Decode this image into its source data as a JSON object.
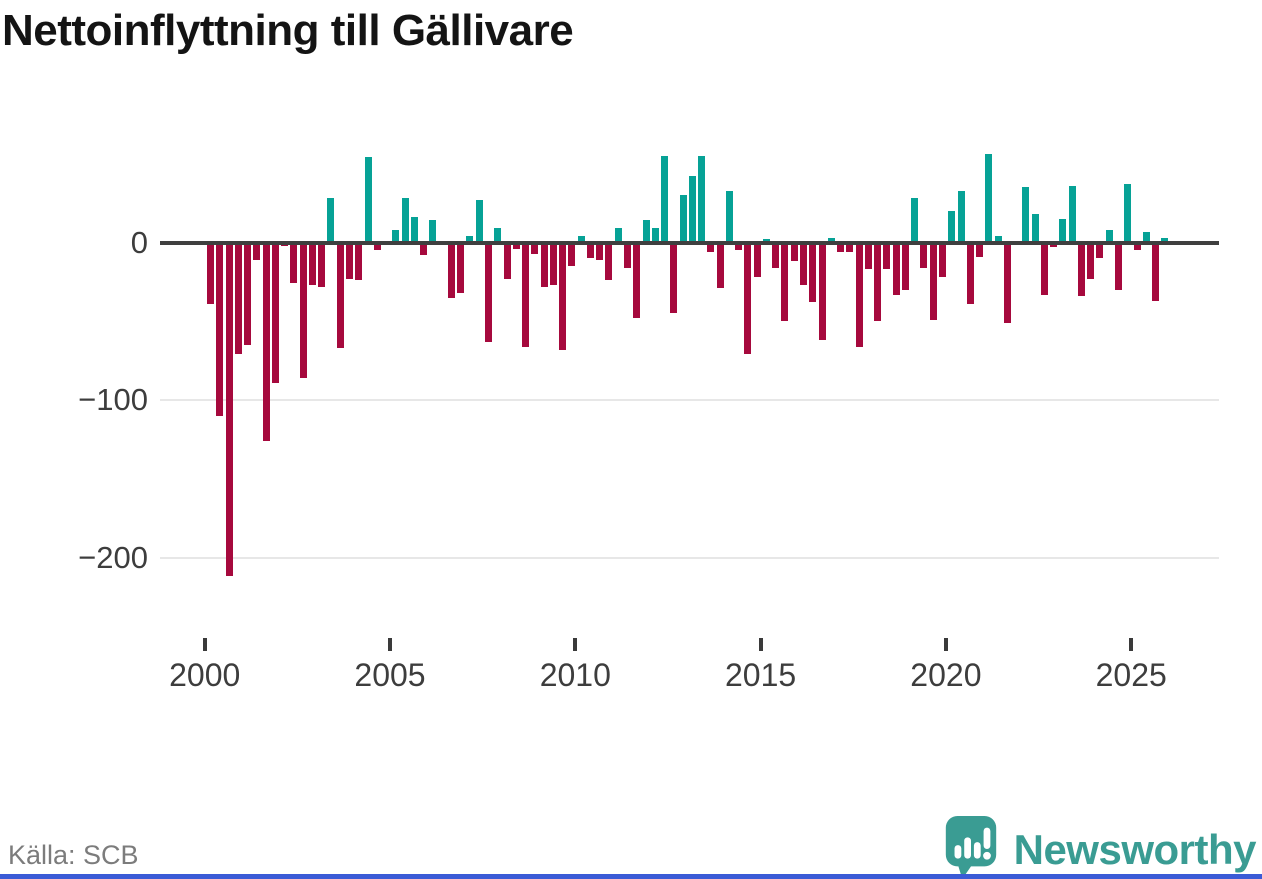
{
  "title": "Nettoinflyttning till Gällivare",
  "source_label": "Källa: SCB",
  "logo": {
    "text": "Newsworthy",
    "icon": "speech-bubble-bar-chart-icon",
    "color": "#3a9c93"
  },
  "colors": {
    "positive_bar": "#06a296",
    "negative_bar": "#a6093d",
    "zero_line": "#3f3f3f",
    "gridline": "#e7e7e7",
    "axis_text": "#3d3d3d",
    "title_text": "#141414",
    "source_text": "#7c7c7c",
    "bottom_strip": "#3b5bd6"
  },
  "chart_data": {
    "type": "bar",
    "title": "Nettoinflyttning till Gällivare",
    "xlabel": "",
    "ylabel": "",
    "x_unit": "quarter",
    "start_year": 2000,
    "start_quarter": 1,
    "end_year": 2025,
    "end_quarter": 4,
    "values": [
      -39,
      -110,
      -212,
      -71,
      -65,
      -11,
      -126,
      -89,
      -2,
      -26,
      -86,
      -27,
      -28,
      28,
      -67,
      -23,
      -24,
      54,
      -5,
      0,
      8,
      28,
      16,
      -8,
      14,
      0,
      -35,
      -32,
      4,
      27,
      -63,
      9,
      -23,
      -4,
      -66,
      -7,
      -28,
      -27,
      -68,
      -15,
      4,
      -10,
      -11,
      -24,
      9,
      -16,
      -48,
      14,
      9,
      55,
      -45,
      30,
      42,
      55,
      -6,
      -29,
      33,
      -5,
      -71,
      -22,
      2,
      -16,
      -50,
      -12,
      -27,
      -38,
      -62,
      3,
      -6,
      -6,
      -66,
      -17,
      -50,
      -17,
      -33,
      -30,
      28,
      -16,
      -49,
      -22,
      20,
      33,
      -39,
      -9,
      56,
      4,
      -51,
      0,
      35,
      18,
      -33,
      -3,
      15,
      36,
      -34,
      -23,
      -10,
      8,
      -30,
      37,
      -5,
      7,
      -37,
      3
    ],
    "x_ticks": [
      2000,
      2005,
      2010,
      2015,
      2020,
      2025
    ],
    "y_ticks": [
      0,
      -100,
      -200
    ],
    "y_tick_labels": [
      "0",
      "−100",
      "−200"
    ],
    "ylim": [
      -230,
      65
    ],
    "grid": "horizontal",
    "legend": "none"
  }
}
